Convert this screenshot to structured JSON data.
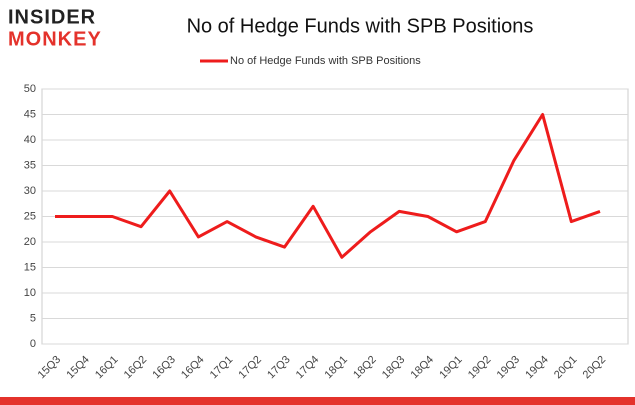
{
  "logo": {
    "top": "INSIDER",
    "bottom": "MONKEY"
  },
  "chart_data": {
    "type": "line",
    "title": "No of Hedge Funds with SPB Positions",
    "categories": [
      "15Q3",
      "15Q4",
      "16Q1",
      "16Q2",
      "16Q3",
      "16Q4",
      "17Q1",
      "17Q2",
      "17Q3",
      "17Q4",
      "18Q1",
      "18Q2",
      "18Q3",
      "18Q4",
      "19Q1",
      "19Q2",
      "19Q3",
      "19Q4",
      "20Q1",
      "20Q2"
    ],
    "series": [
      {
        "name": "No of Hedge Funds with SPB Positions",
        "color": "#ee1c1c",
        "values": [
          25,
          25,
          25,
          23,
          30,
          21,
          24,
          21,
          19,
          27,
          17,
          22,
          26,
          25,
          22,
          24,
          36,
          45,
          24,
          26
        ]
      }
    ],
    "ylim": [
      0,
      50
    ],
    "yticks": [
      0,
      5,
      10,
      15,
      20,
      25,
      30,
      35,
      40,
      45,
      50
    ],
    "grid": true,
    "legend": "top"
  }
}
